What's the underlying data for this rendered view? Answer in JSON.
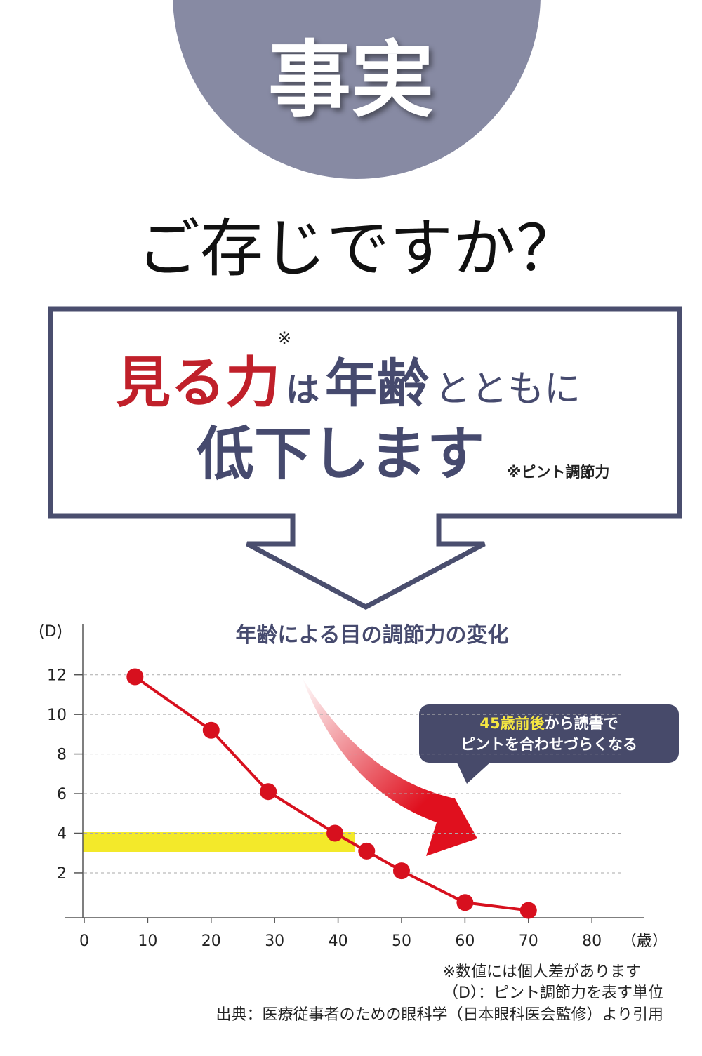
{
  "header": {
    "badge": "事実",
    "question": "ご存じですか？"
  },
  "headline": {
    "emphasis": "見る力",
    "mark": "※",
    "particle": "は",
    "subject": "年齢",
    "line1_end": "とともに",
    "line2": "低下します",
    "footnote": "※ピント調節力"
  },
  "chart_data": {
    "type": "line",
    "title": "年齢による目の調節力の変化",
    "y_label": "(D)",
    "x_label": "（歳）",
    "x": [
      8,
      20,
      29,
      39.5,
      44.5,
      50,
      60,
      70
    ],
    "values": [
      11.9,
      9.2,
      6.1,
      4.0,
      3.1,
      2.1,
      0.5,
      0.1
    ],
    "color": "#d7101e",
    "xlim": [
      0,
      88
    ],
    "ylim": [
      0,
      14.2
    ],
    "xticks": [
      0,
      10,
      20,
      30,
      40,
      50,
      60,
      70,
      80
    ],
    "yticks": [
      2,
      4,
      6,
      8,
      10,
      12
    ],
    "grid": true,
    "annotation": {
      "highlight": "45歳前後",
      "text": "から読書で",
      "text2": "ピントを合わせづらくなる"
    },
    "notes": [
      "※数値には個人差があります",
      "（D）：ピント調節力を表す単位",
      "出典：医療従事者のための眼科学（日本眼科医会監修）より引用"
    ]
  }
}
